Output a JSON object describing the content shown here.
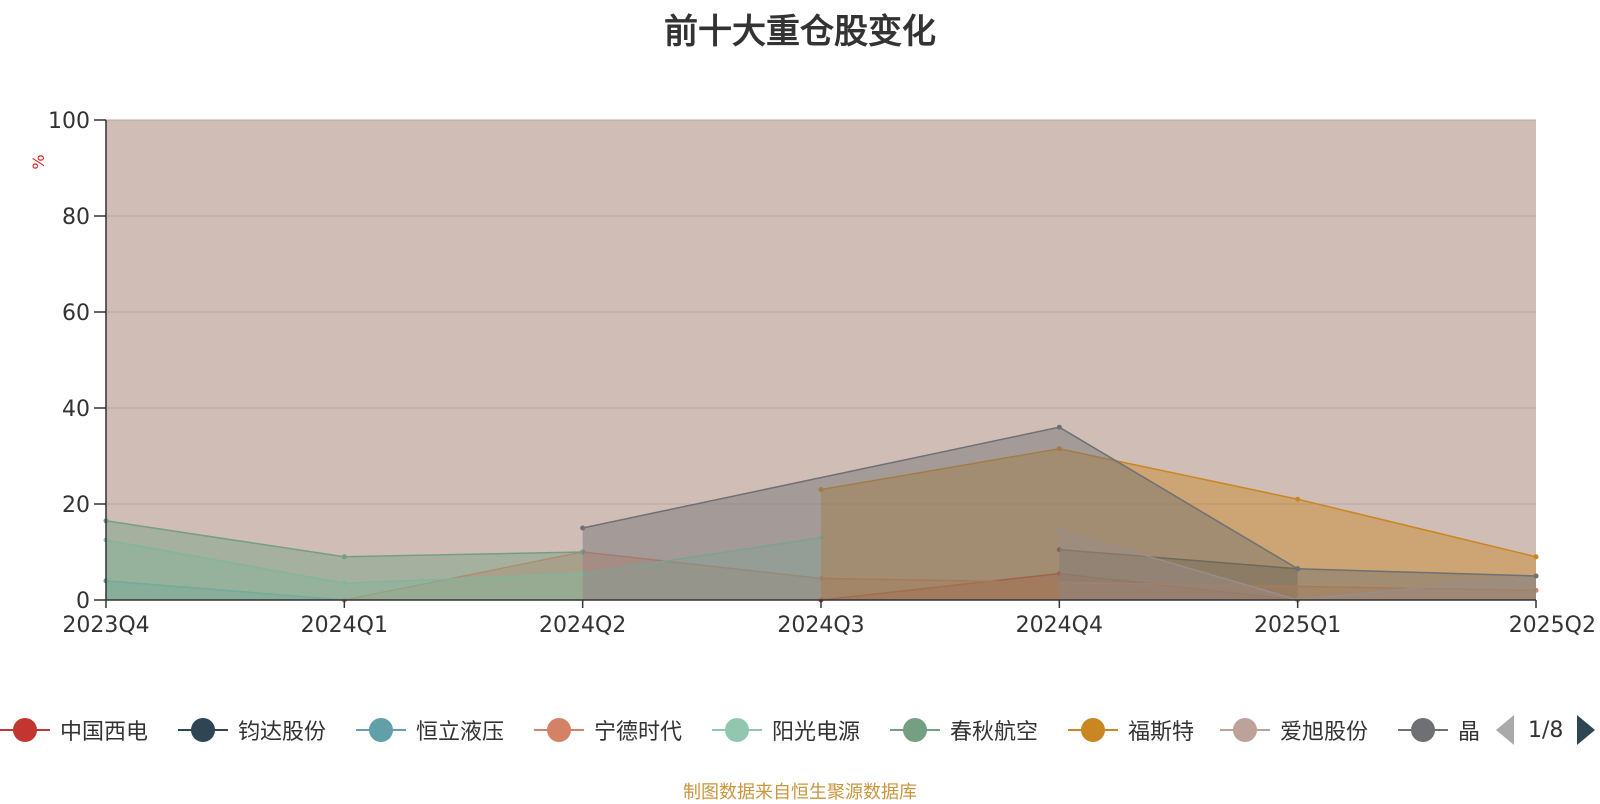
{
  "chart_data": {
    "type": "area",
    "title": "前十大重仓股变化",
    "ylabel": "%",
    "ylim": [
      0,
      100
    ],
    "yticks": [
      0,
      20,
      40,
      60,
      80,
      100
    ],
    "categories": [
      "2023Q4",
      "2024Q1",
      "2024Q2",
      "2024Q3",
      "2024Q4",
      "2025Q1",
      "2025Q2"
    ],
    "grid": true,
    "legend_position": "bottom",
    "series": [
      {
        "name": "中国西电",
        "color": "#c23531",
        "values": [
          null,
          null,
          null,
          0,
          5.5,
          0,
          null
        ]
      },
      {
        "name": "钧达股份",
        "color": "#2f4554",
        "values": [
          null,
          null,
          null,
          null,
          10.5,
          6.5,
          null
        ]
      },
      {
        "name": "恒立液压",
        "color": "#61a0a8",
        "values": [
          4,
          0,
          null,
          null,
          null,
          null,
          null
        ]
      },
      {
        "name": "宁德时代",
        "color": "#d48265",
        "values": [
          null,
          0,
          10,
          4.5,
          null,
          null,
          2
        ]
      },
      {
        "name": "阳光电源",
        "color": "#91c7ae",
        "values": [
          12.5,
          3.5,
          5.5,
          13,
          null,
          null,
          null
        ]
      },
      {
        "name": "春秋航空",
        "color": "#749f83",
        "values": [
          16.5,
          9,
          10,
          null,
          null,
          null,
          null
        ]
      },
      {
        "name": "福斯特",
        "color": "#ca8622",
        "values": [
          null,
          null,
          null,
          23,
          31.5,
          21,
          9
        ]
      },
      {
        "name": "爱旭股份",
        "color": "#bda29a",
        "values": [
          null,
          null,
          null,
          null,
          14.5,
          0,
          5
        ]
      },
      {
        "name": "晶澳科技",
        "color": "#6e7074",
        "values": [
          null,
          null,
          15,
          null,
          36,
          6.5,
          5
        ]
      }
    ],
    "data_labels": [],
    "annotations": []
  },
  "chart_bg_color": "#d0bdb6",
  "axis_color": "#333333",
  "grid_color": "#b9a9a3",
  "legend": {
    "items": [
      {
        "label": "中国西电",
        "color": "#c23531"
      },
      {
        "label": "钧达股份",
        "color": "#2f4554"
      },
      {
        "label": "恒立液压",
        "color": "#61a0a8"
      },
      {
        "label": "宁德时代",
        "color": "#d48265"
      },
      {
        "label": "阳光电源",
        "color": "#91c7ae"
      },
      {
        "label": "春秋航空",
        "color": "#749f83"
      },
      {
        "label": "福斯特",
        "color": "#ca8622"
      },
      {
        "label": "爱旭股份",
        "color": "#bda29a"
      },
      {
        "label": "晶澳科技",
        "color": "#6e7074"
      }
    ],
    "page": "1/8",
    "prev_icon": "triangle-left-icon",
    "next_icon": "triangle-right-icon"
  },
  "source_note": "制图数据来自恒生聚源数据库"
}
